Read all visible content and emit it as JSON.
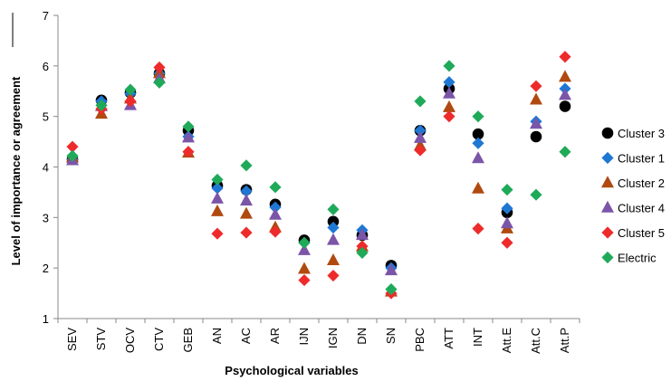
{
  "chart_data": {
    "type": "scatter",
    "title": "",
    "xlabel": "Psychological variables",
    "ylabel": "Level of importance or agreement",
    "ylim": [
      1,
      7
    ],
    "yticks": [
      1,
      2,
      3,
      4,
      5,
      6,
      7
    ],
    "grid": false,
    "legend_position": "right",
    "categories": [
      "SEV",
      "STV",
      "OCV",
      "CTV",
      "GEB",
      "AN",
      "AC",
      "AR",
      "IJN",
      "IGN",
      "DN",
      "SN",
      "PBC",
      "ATT",
      "INT",
      "Att.E",
      "Att.C",
      "Att.P"
    ],
    "series": [
      {
        "name": "Cluster 3",
        "marker": "circle",
        "color": "#000000",
        "values": [
          4.15,
          5.32,
          5.47,
          5.85,
          4.72,
          3.63,
          3.55,
          3.26,
          2.55,
          2.92,
          2.65,
          2.05,
          4.72,
          5.55,
          4.65,
          3.1,
          4.6,
          5.2
        ]
      },
      {
        "name": "Cluster 1",
        "marker": "diamond",
        "color": "#1f77d4",
        "values": [
          4.15,
          5.3,
          5.45,
          5.85,
          4.6,
          3.58,
          3.52,
          3.2,
          2.5,
          2.8,
          2.75,
          2.0,
          4.72,
          5.68,
          4.47,
          3.18,
          4.9,
          5.55
        ]
      },
      {
        "name": "Cluster 2",
        "marker": "triangle",
        "color": "#b04a10",
        "values": [
          4.18,
          5.05,
          5.35,
          5.85,
          4.28,
          3.12,
          3.07,
          2.8,
          1.98,
          2.15,
          2.42,
          1.53,
          4.42,
          5.18,
          3.57,
          2.78,
          5.33,
          5.78
        ]
      },
      {
        "name": "Cluster 4",
        "marker": "triangle",
        "color": "#7b55a8",
        "values": [
          4.13,
          5.2,
          5.22,
          5.75,
          4.58,
          3.37,
          3.33,
          3.05,
          2.35,
          2.55,
          2.65,
          1.95,
          4.57,
          5.45,
          4.17,
          2.88,
          4.85,
          5.42
        ]
      },
      {
        "name": "Cluster 5",
        "marker": "diamond",
        "color": "#ee2b2b",
        "values": [
          4.4,
          5.15,
          5.3,
          5.97,
          4.3,
          2.68,
          2.7,
          2.72,
          1.76,
          1.85,
          2.43,
          1.5,
          4.33,
          5.0,
          2.78,
          2.5,
          5.6,
          6.18
        ]
      },
      {
        "name": "Electric",
        "marker": "diamond",
        "color": "#1faa5a",
        "values": [
          4.22,
          5.22,
          5.53,
          5.67,
          4.8,
          3.75,
          4.03,
          3.6,
          2.5,
          3.16,
          2.3,
          1.58,
          5.3,
          6.0,
          5.0,
          3.55,
          3.45,
          4.3
        ]
      }
    ]
  }
}
